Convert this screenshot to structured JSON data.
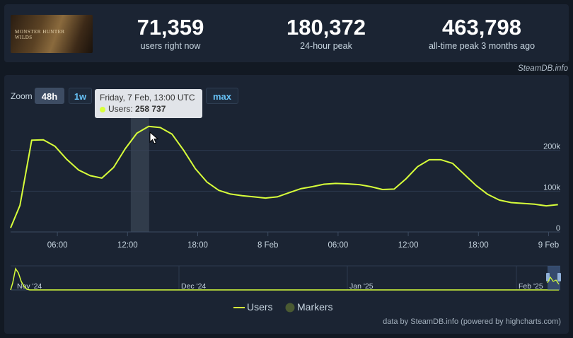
{
  "stats": [
    {
      "value": "71,359",
      "label": "users right now"
    },
    {
      "value": "180,372",
      "label": "24-hour peak"
    },
    {
      "value": "463,798",
      "label": "all-time peak 3 months ago"
    }
  ],
  "thumbnail": {
    "logo_text": "MONSTER HUNTER",
    "logo_sub": "WILDS"
  },
  "credit_top": "SteamDB.info",
  "zoom": {
    "label": "Zoom",
    "buttons": [
      "48h",
      "1w",
      "max"
    ],
    "active": "48h"
  },
  "tooltip": {
    "title": "Friday, 7 Feb, 13:00 UTC",
    "series_label": "Users:",
    "value": "258 737"
  },
  "legend": {
    "users": "Users",
    "markers": "Markers"
  },
  "credit_bottom": "data by SteamDB.info (powered by highcharts.com)",
  "colors": {
    "line": "#d8ff3a",
    "marker": "#4a5a32",
    "background": "#1b2433"
  },
  "chart_data": {
    "type": "line",
    "series": [
      {
        "name": "Users",
        "x_hours": [
          2.0,
          2.8,
          3.8,
          4.8,
          5.8,
          6.8,
          7.8,
          8.8,
          9.8,
          10.8,
          11.8,
          12.8,
          13.8,
          14.8,
          15.8,
          16.8,
          17.8,
          18.8,
          19.8,
          20.8,
          21.8,
          22.8,
          23.8,
          24.8,
          25.8,
          26.8,
          27.8,
          28.8,
          29.8,
          30.8,
          31.8,
          32.8,
          33.8,
          34.8,
          35.8,
          36.8,
          37.8,
          38.8,
          39.8,
          40.8,
          41.8,
          42.8,
          43.8,
          44.8,
          45.8,
          46.8,
          47.8,
          48.8
        ],
        "values": [
          10000,
          65000,
          225000,
          226000,
          210000,
          178000,
          152000,
          138000,
          132000,
          158000,
          204000,
          242000,
          258737,
          256000,
          240000,
          200000,
          155000,
          122000,
          102000,
          93000,
          89000,
          86000,
          83000,
          86000,
          96000,
          106000,
          111000,
          117000,
          119000,
          118000,
          116000,
          111000,
          104000,
          105000,
          130000,
          160000,
          177000,
          177000,
          168000,
          141000,
          114000,
          92000,
          78000,
          72000,
          70000,
          68000,
          64000,
          67000
        ]
      }
    ],
    "x_ticks": [
      "06:00",
      "12:00",
      "18:00",
      "8 Feb",
      "06:00",
      "12:00",
      "18:00",
      "9 Feb"
    ],
    "x_tick_hours": [
      6,
      12,
      18,
      24,
      30,
      36,
      42,
      48
    ],
    "y_ticks": [
      "0",
      "100k",
      "200k"
    ],
    "y_tick_values": [
      0,
      100000,
      200000
    ],
    "ylim": [
      0,
      300000
    ],
    "xlim": [
      2.0,
      49.0
    ],
    "highlight_hour": 13.0,
    "navigator": {
      "labels": [
        "Nov '24",
        "Dec '24",
        "Jan '25",
        "Feb '25"
      ]
    }
  }
}
